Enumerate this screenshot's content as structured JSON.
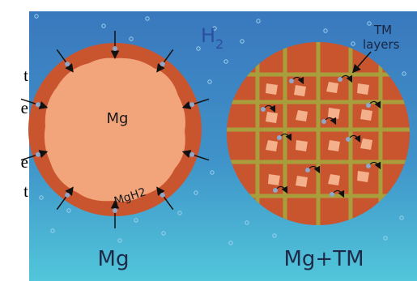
{
  "margin_fragments": [
    "t",
    "e",
    "e",
    "t"
  ],
  "gas_label": {
    "text": "H",
    "subscript": "2"
  },
  "tm_label": [
    "TM",
    "layers"
  ],
  "left_particle": {
    "core_label": "Mg",
    "shell_label": "MgH2",
    "caption": "Mg"
  },
  "right_particle": {
    "caption": "Mg+TM"
  }
}
